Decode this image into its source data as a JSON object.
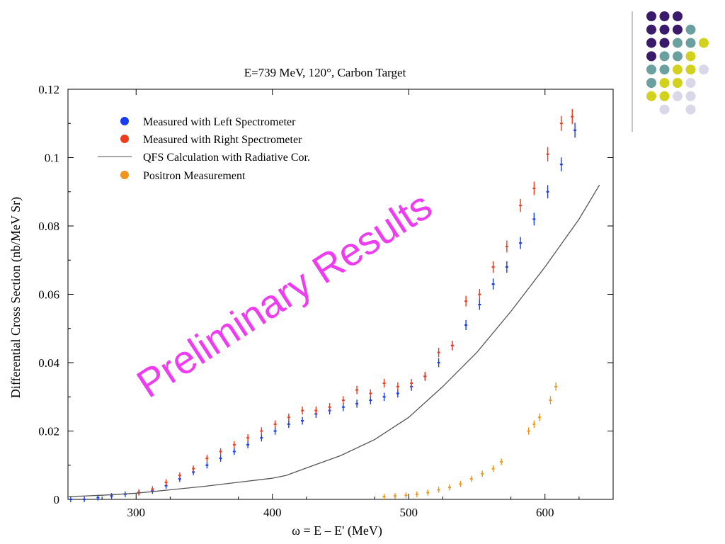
{
  "chart_data": {
    "type": "scatter",
    "title": "E=739 MeV, 120°, Carbon Target",
    "xlabel": "ω = E – E' (MeV)",
    "ylabel": "Differential Cross Section (nb/MeV Sr)",
    "xlim": [
      250,
      650
    ],
    "ylim": [
      0,
      0.12
    ],
    "x_ticks": [
      300,
      400,
      500,
      600
    ],
    "y_ticks": [
      0,
      0.02,
      0.04,
      0.06,
      0.08,
      0.1,
      0.12
    ],
    "x_tick_labels": [
      "300",
      "400",
      "500",
      "600"
    ],
    "y_tick_labels": [
      "0",
      "0.02",
      "0.04",
      "0.06",
      "0.08",
      "0.1",
      "0.12"
    ],
    "legend_position": "top-left",
    "watermark": "Preliminary Results",
    "series": [
      {
        "name": "Measured with Left Spectrometer",
        "kind": "points",
        "color": "#1a3cf0",
        "x": [
          252,
          262,
          272,
          282,
          292,
          302,
          312,
          322,
          332,
          342,
          352,
          362,
          372,
          382,
          392,
          402,
          412,
          422,
          432,
          442,
          452,
          462,
          472,
          482,
          492,
          502,
          512,
          522,
          532,
          542,
          552,
          562,
          572,
          582,
          592,
          602,
          612,
          622
        ],
        "y": [
          0.0,
          0.0,
          0.0005,
          0.001,
          0.0015,
          0.002,
          0.0025,
          0.004,
          0.006,
          0.008,
          0.01,
          0.012,
          0.014,
          0.016,
          0.018,
          0.02,
          0.022,
          0.023,
          0.025,
          0.026,
          0.027,
          0.028,
          0.029,
          0.03,
          0.031,
          0.033,
          0.036,
          0.04,
          0.045,
          0.051,
          0.057,
          0.063,
          0.068,
          0.075,
          0.082,
          0.09,
          0.098,
          0.108
        ]
      },
      {
        "name": "Measured with Right Spectrometer",
        "kind": "points",
        "color": "#f03c1e",
        "x": [
          302,
          312,
          322,
          332,
          342,
          352,
          362,
          372,
          382,
          392,
          402,
          412,
          422,
          432,
          442,
          452,
          462,
          472,
          482,
          492,
          502,
          512,
          522,
          532,
          542,
          552,
          562,
          572,
          582,
          592,
          602,
          612,
          620
        ],
        "y": [
          0.002,
          0.003,
          0.005,
          0.007,
          0.009,
          0.012,
          0.014,
          0.016,
          0.018,
          0.02,
          0.022,
          0.024,
          0.026,
          0.026,
          0.027,
          0.029,
          0.032,
          0.031,
          0.034,
          0.033,
          0.034,
          0.036,
          0.043,
          0.045,
          0.058,
          0.06,
          0.068,
          0.074,
          0.086,
          0.091,
          0.101,
          0.11,
          0.112
        ]
      },
      {
        "name": "QFS Calculation with Radiative Cor.",
        "kind": "line",
        "color": "#555555",
        "x": [
          250,
          275,
          300,
          325,
          350,
          375,
          400,
          410,
          425,
          450,
          475,
          500,
          525,
          550,
          575,
          600,
          625,
          640
        ],
        "y": [
          0.0008,
          0.0012,
          0.0018,
          0.0028,
          0.0038,
          0.005,
          0.0062,
          0.007,
          0.0092,
          0.0128,
          0.0175,
          0.024,
          0.033,
          0.043,
          0.055,
          0.068,
          0.082,
          0.092
        ]
      },
      {
        "name": "Positron Measurement",
        "kind": "points",
        "color": "#f0961e",
        "x": [
          482,
          490,
          498,
          506,
          514,
          522,
          530,
          538,
          546,
          554,
          562,
          568,
          588,
          592,
          596,
          604,
          608
        ],
        "y": [
          0.0008,
          0.001,
          0.0012,
          0.0015,
          0.002,
          0.0028,
          0.0035,
          0.0045,
          0.006,
          0.0075,
          0.009,
          0.011,
          0.02,
          0.022,
          0.024,
          0.029,
          0.033
        ]
      }
    ]
  },
  "decoration": {
    "dot_colors": [
      "#3a1a6a",
      "#6aa0a0",
      "#d2d21e",
      "#d8d8e8"
    ]
  }
}
